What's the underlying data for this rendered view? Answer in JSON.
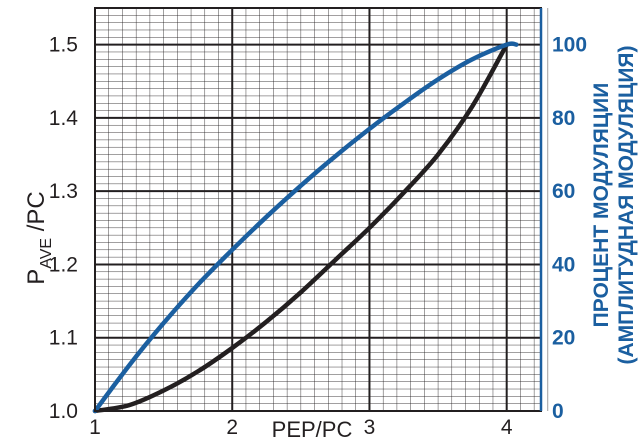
{
  "chart_data": {
    "type": "line",
    "xlabel": "PEP/PC",
    "ylabel": {
      "main": "P",
      "sub": "AVE",
      "suffix": " /PC"
    },
    "y2label": [
      "ПРОЦЕНТ МОДУЛЯЦИИ",
      "(АМПЛИТУДНАЯ МОДУЛЯЦИЯ)"
    ],
    "xlim": [
      1,
      4.25
    ],
    "ylim": [
      1.0,
      1.55
    ],
    "y2lim": [
      0,
      110
    ],
    "x_ticks": [
      "1",
      "2",
      "3",
      "4"
    ],
    "y_ticks": [
      "1.0",
      "1.1",
      "1.2",
      "1.3",
      "1.4",
      "1.5"
    ],
    "y2_ticks": [
      "0",
      "20",
      "40",
      "60",
      "80",
      "100"
    ],
    "grid": true,
    "colors": {
      "black_series": "#231f20",
      "blue_series": "#1b5fa0",
      "grid": "#231f20",
      "axis_right": "#1b5fa0"
    },
    "series": [
      {
        "axis": "left",
        "color": "#231f20",
        "x": [
          1.0,
          1.25,
          1.5,
          1.75,
          2.0,
          2.25,
          2.5,
          2.75,
          3.0,
          3.25,
          3.5,
          3.75,
          4.0
        ],
        "y": [
          1.0,
          1.008,
          1.028,
          1.054,
          1.086,
          1.122,
          1.162,
          1.206,
          1.25,
          1.298,
          1.35,
          1.416,
          1.5
        ]
      },
      {
        "axis": "right",
        "color": "#1b5fa0",
        "x": [
          1.0,
          1.25,
          1.5,
          1.75,
          2.0,
          2.25,
          2.5,
          2.75,
          3.0,
          3.25,
          3.5,
          3.75,
          4.0,
          4.07
        ],
        "y": [
          0,
          12.5,
          24,
          34.5,
          44,
          53,
          61.5,
          69.5,
          77,
          84,
          90.5,
          96,
          100,
          100
        ]
      }
    ]
  }
}
